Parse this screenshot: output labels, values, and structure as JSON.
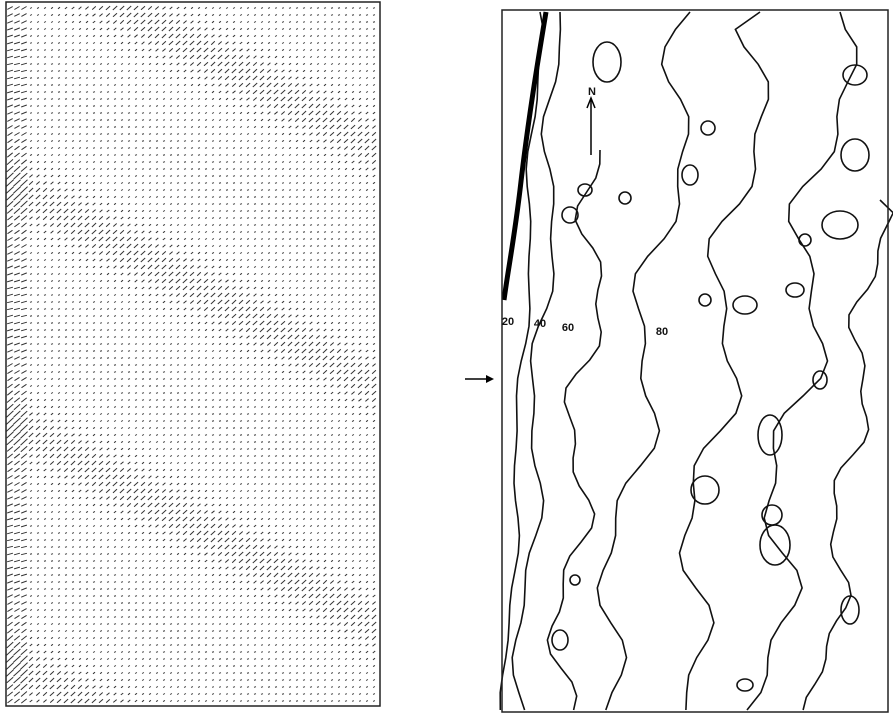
{
  "figure": {
    "north_label": "N",
    "contour_labels": [
      "20",
      "40",
      "60",
      "80"
    ]
  }
}
